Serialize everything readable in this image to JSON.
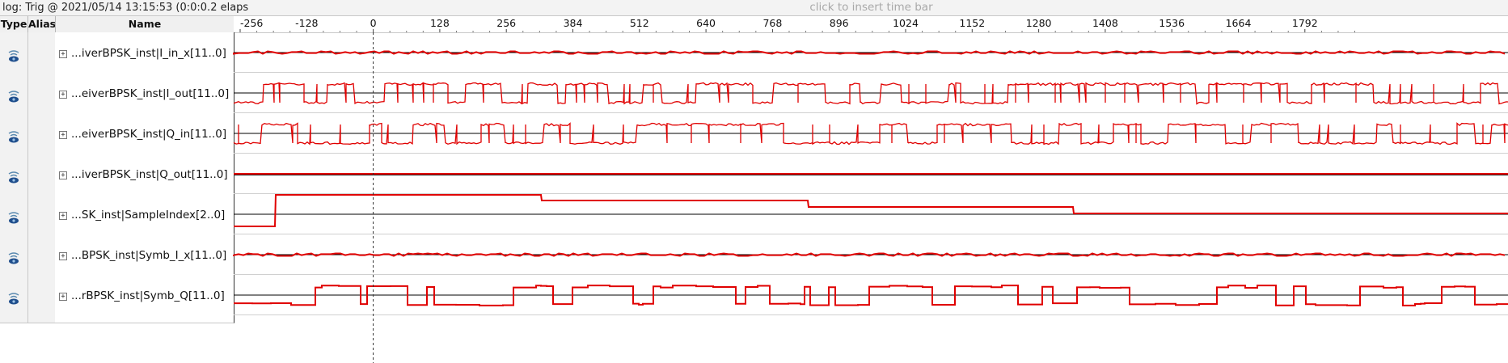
{
  "toolbar": {
    "log_text": "log: Trig @ 2021/05/14 13:15:53 (0:0:0.2 elaps",
    "insert_hint": "click to insert time bar"
  },
  "columns": {
    "type": "Type",
    "alias": "Alias",
    "name": "Name"
  },
  "ruler": {
    "labels": [
      "-256",
      "-128",
      "0",
      "128",
      "256",
      "384",
      "512",
      "640",
      "768",
      "896",
      "1024",
      "1152",
      "1280",
      "1408",
      "1536",
      "1664",
      "1792"
    ]
  },
  "signals": [
    {
      "name": "...iverBPSK_inst|I_in_x[11..0]",
      "icon": "signal-tap-node-icon",
      "style": "small-noise"
    },
    {
      "name": "...eiverBPSK_inst|I_out[11..0]",
      "icon": "signal-tap-node-icon",
      "style": "bpsk"
    },
    {
      "name": "...eiverBPSK_inst|Q_in[11..0]",
      "icon": "signal-tap-node-icon",
      "style": "bpsk"
    },
    {
      "name": "...iverBPSK_inst|Q_out[11..0]",
      "icon": "signal-tap-node-icon",
      "style": "flat"
    },
    {
      "name": "...SK_inst|SampleIndex[2..0]",
      "icon": "signal-tap-node-icon",
      "style": "steps"
    },
    {
      "name": "...BPSK_inst|Symb_I_x[11..0]",
      "icon": "signal-tap-node-icon",
      "style": "small-noise"
    },
    {
      "name": "...rBPSK_inst|Symb_Q[11..0]",
      "icon": "signal-tap-node-icon",
      "style": "square"
    }
  ],
  "colors": {
    "wave": "#e00000",
    "baseline": "#000000",
    "trigger_line": "#333333"
  }
}
